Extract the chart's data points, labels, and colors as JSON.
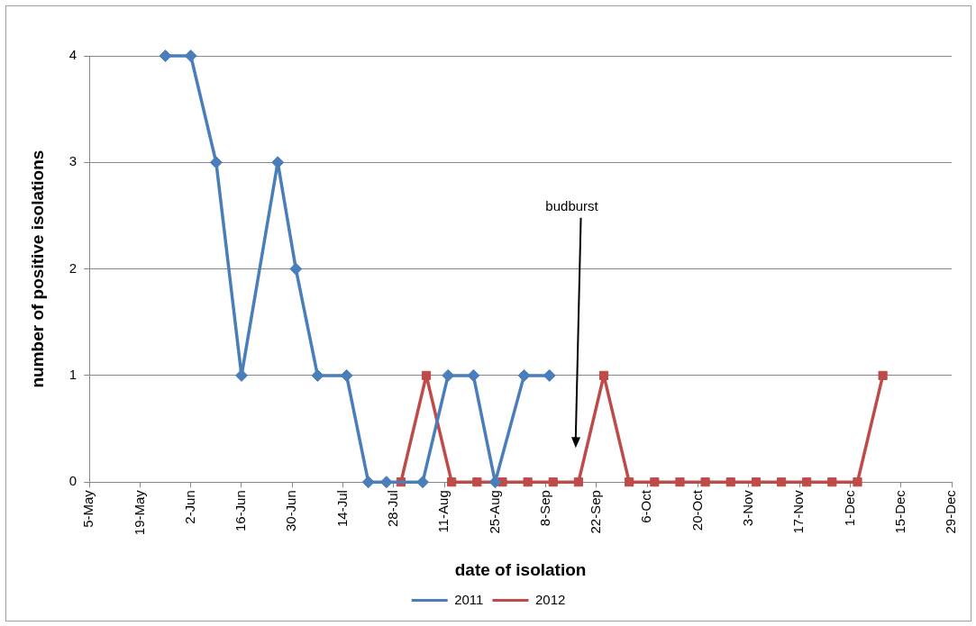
{
  "chart_data": {
    "type": "line",
    "xlabel": "date of isolation",
    "ylabel": "number of positive isolations",
    "series": [
      {
        "name": "2011",
        "color": "#4a7ebb",
        "marker": "diamond",
        "x": [
          "--05-26",
          "--06-02",
          "--06-09",
          "--06-16",
          "--06-26",
          "--07-01",
          "--07-07",
          "--07-15",
          "--07-21",
          "--07-26",
          "--08-05",
          "--08-12",
          "--08-19",
          "--08-25",
          "--09-02",
          "--09-09"
        ],
        "values": [
          4,
          4,
          3,
          1,
          3,
          2,
          1,
          1,
          0,
          0,
          0,
          1,
          1,
          0,
          1,
          1
        ]
      },
      {
        "name": "2012",
        "color": "#be4b48",
        "marker": "square",
        "x": [
          "--07-30",
          "--08-06",
          "--08-13",
          "--08-20",
          "--08-27",
          "--09-03",
          "--09-10",
          "--09-17",
          "--09-24",
          "--10-01",
          "--10-08",
          "--10-15",
          "--10-22",
          "--10-29",
          "--11-05",
          "--11-12",
          "--11-19",
          "--11-26",
          "--12-03",
          "--12-10"
        ],
        "values": [
          0,
          1,
          0,
          0,
          0,
          0,
          0,
          0,
          1,
          0,
          0,
          0,
          0,
          0,
          0,
          0,
          0,
          0,
          0,
          1
        ]
      }
    ],
    "xlim": [
      "--05-05",
      "--12-29"
    ],
    "xticks": [
      {
        "value": "--05-05",
        "label": "5-May"
      },
      {
        "value": "--05-19",
        "label": "19-May"
      },
      {
        "value": "--06-02",
        "label": "2-Jun"
      },
      {
        "value": "--06-16",
        "label": "16-Jun"
      },
      {
        "value": "--06-30",
        "label": "30-Jun"
      },
      {
        "value": "--07-14",
        "label": "14-Jul"
      },
      {
        "value": "--07-28",
        "label": "28-Jul"
      },
      {
        "value": "--08-11",
        "label": "11-Aug"
      },
      {
        "value": "--08-25",
        "label": "25-Aug"
      },
      {
        "value": "--09-08",
        "label": "8-Sep"
      },
      {
        "value": "--09-22",
        "label": "22-Sep"
      },
      {
        "value": "--10-06",
        "label": "6-Oct"
      },
      {
        "value": "--10-20",
        "label": "20-Oct"
      },
      {
        "value": "--11-03",
        "label": "3-Nov"
      },
      {
        "value": "--11-17",
        "label": "17-Nov"
      },
      {
        "value": "--12-01",
        "label": "1-Dec"
      },
      {
        "value": "--12-15",
        "label": "15-Dec"
      },
      {
        "value": "--12-29",
        "label": "29-Dec"
      }
    ],
    "ylim": [
      0,
      4
    ],
    "yticks": [
      0,
      1,
      2,
      3,
      4
    ],
    "grid": "y",
    "legend": "bottom",
    "line_style": "solid",
    "annotations": [
      "budburst"
    ]
  }
}
